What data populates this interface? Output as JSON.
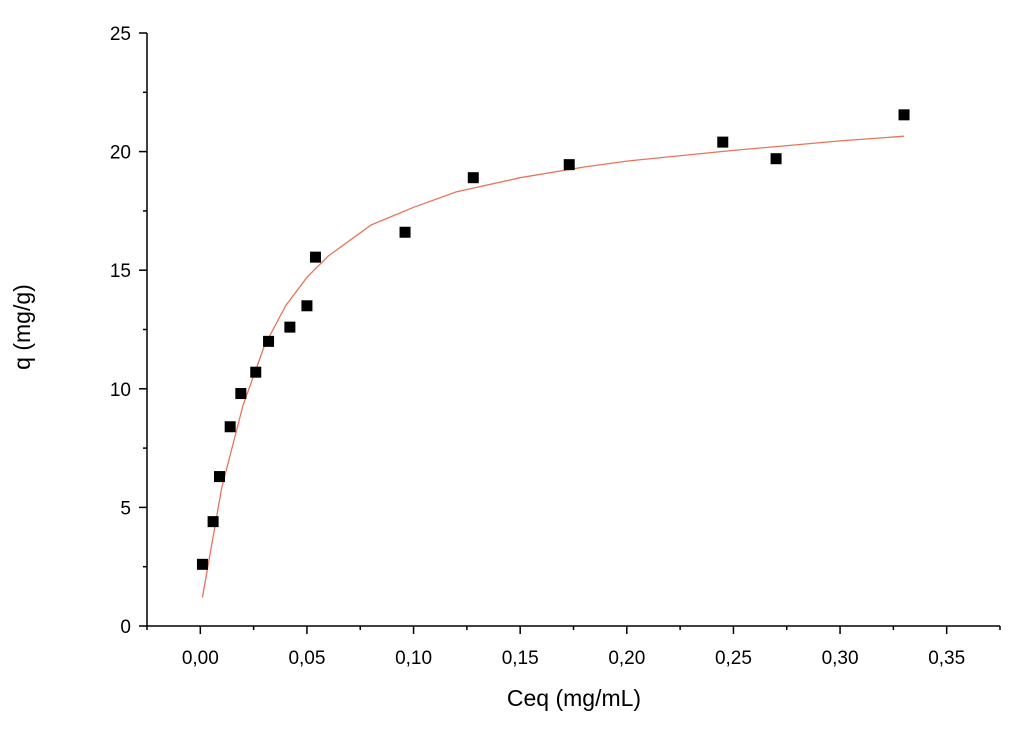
{
  "chart_data": {
    "type": "scatter",
    "xlabel": "Ceq (mg/mL)",
    "ylabel": "q (mg/g)",
    "xlim": [
      -0.025,
      0.375
    ],
    "ylim": [
      0,
      25
    ],
    "x_ticks": [
      0.0,
      0.05,
      0.1,
      0.15,
      0.2,
      0.25,
      0.3,
      0.35
    ],
    "x_tick_labels": [
      "0,00",
      "0,05",
      "0,10",
      "0,15",
      "0,20",
      "0,25",
      "0,30",
      "0,35"
    ],
    "y_ticks": [
      0,
      5,
      10,
      15,
      20,
      25
    ],
    "y_tick_labels": [
      "0",
      "5",
      "10",
      "15",
      "20",
      "25"
    ],
    "grid": false,
    "series": [
      {
        "kind": "scatter",
        "marker": "square",
        "color": "#000000",
        "points": [
          {
            "x": 0.001,
            "y": 2.6
          },
          {
            "x": 0.006,
            "y": 4.4
          },
          {
            "x": 0.009,
            "y": 6.3
          },
          {
            "x": 0.014,
            "y": 8.4
          },
          {
            "x": 0.019,
            "y": 9.8
          },
          {
            "x": 0.026,
            "y": 10.7
          },
          {
            "x": 0.032,
            "y": 12.0
          },
          {
            "x": 0.042,
            "y": 12.6
          },
          {
            "x": 0.05,
            "y": 13.5
          },
          {
            "x": 0.054,
            "y": 15.55
          },
          {
            "x": 0.096,
            "y": 16.6
          },
          {
            "x": 0.128,
            "y": 18.9
          },
          {
            "x": 0.173,
            "y": 19.45
          },
          {
            "x": 0.245,
            "y": 20.4
          },
          {
            "x": 0.27,
            "y": 19.7
          },
          {
            "x": 0.33,
            "y": 21.55
          }
        ]
      },
      {
        "kind": "line",
        "color": "#e8745a",
        "points": [
          {
            "x": 0.001,
            "y": 1.2
          },
          {
            "x": 0.01,
            "y": 5.8
          },
          {
            "x": 0.02,
            "y": 9.3
          },
          {
            "x": 0.03,
            "y": 11.8
          },
          {
            "x": 0.04,
            "y": 13.5
          },
          {
            "x": 0.05,
            "y": 14.7
          },
          {
            "x": 0.06,
            "y": 15.6
          },
          {
            "x": 0.08,
            "y": 16.9
          },
          {
            "x": 0.1,
            "y": 17.65
          },
          {
            "x": 0.12,
            "y": 18.3
          },
          {
            "x": 0.15,
            "y": 18.9
          },
          {
            "x": 0.18,
            "y": 19.35
          },
          {
            "x": 0.2,
            "y": 19.6
          },
          {
            "x": 0.25,
            "y": 20.05
          },
          {
            "x": 0.3,
            "y": 20.45
          },
          {
            "x": 0.33,
            "y": 20.65
          }
        ]
      }
    ]
  }
}
